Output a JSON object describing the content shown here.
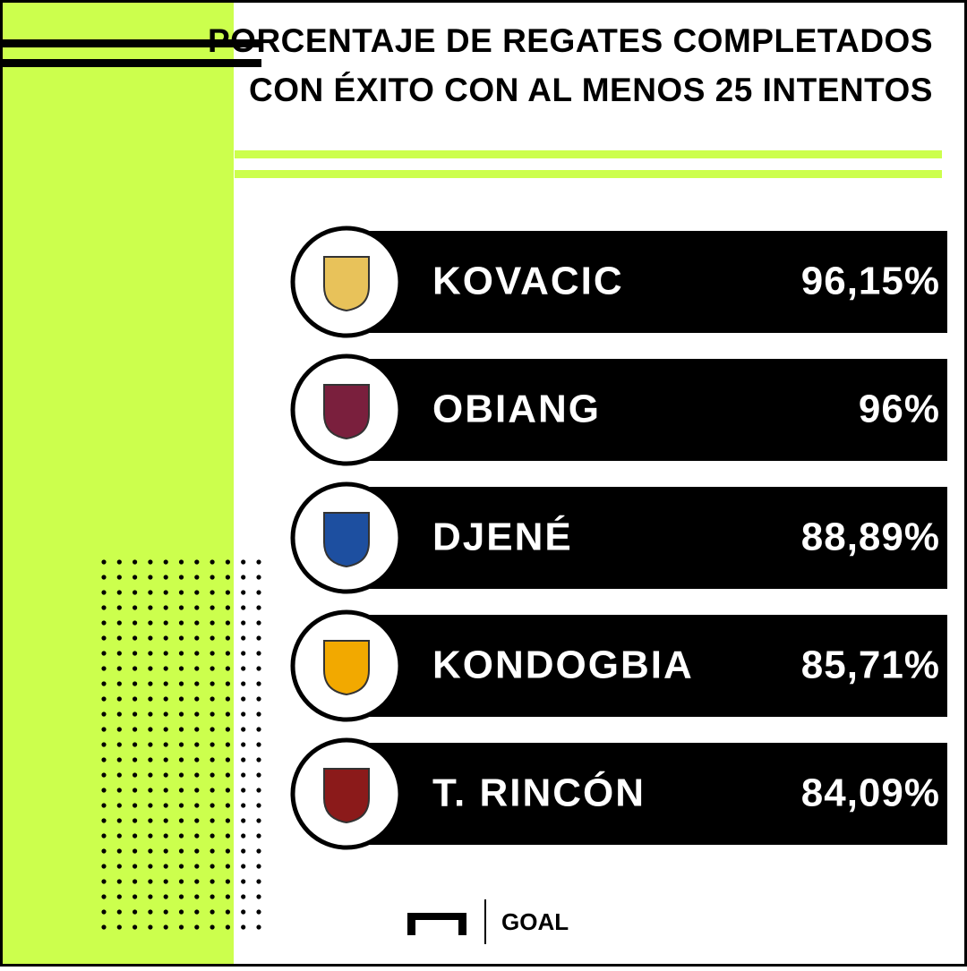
{
  "header": {
    "title_lines": [
      "PORCENTAJE DE REGATES COMPLETADOS",
      "CON ÉXITO CON AL MENOS 25 INTENTOS"
    ]
  },
  "ranking": {
    "rows": [
      {
        "name": "KOVACIC",
        "value": "96,15%"
      },
      {
        "name": "OBIANG",
        "value": "96%"
      },
      {
        "name": "DJENÉ",
        "value": "88,89%"
      },
      {
        "name": "KONDOGBIA",
        "value": "85,71%"
      },
      {
        "name": "T. RINCÓN",
        "value": "84,09%"
      }
    ]
  },
  "footer": {
    "brand": "GOAL"
  }
}
